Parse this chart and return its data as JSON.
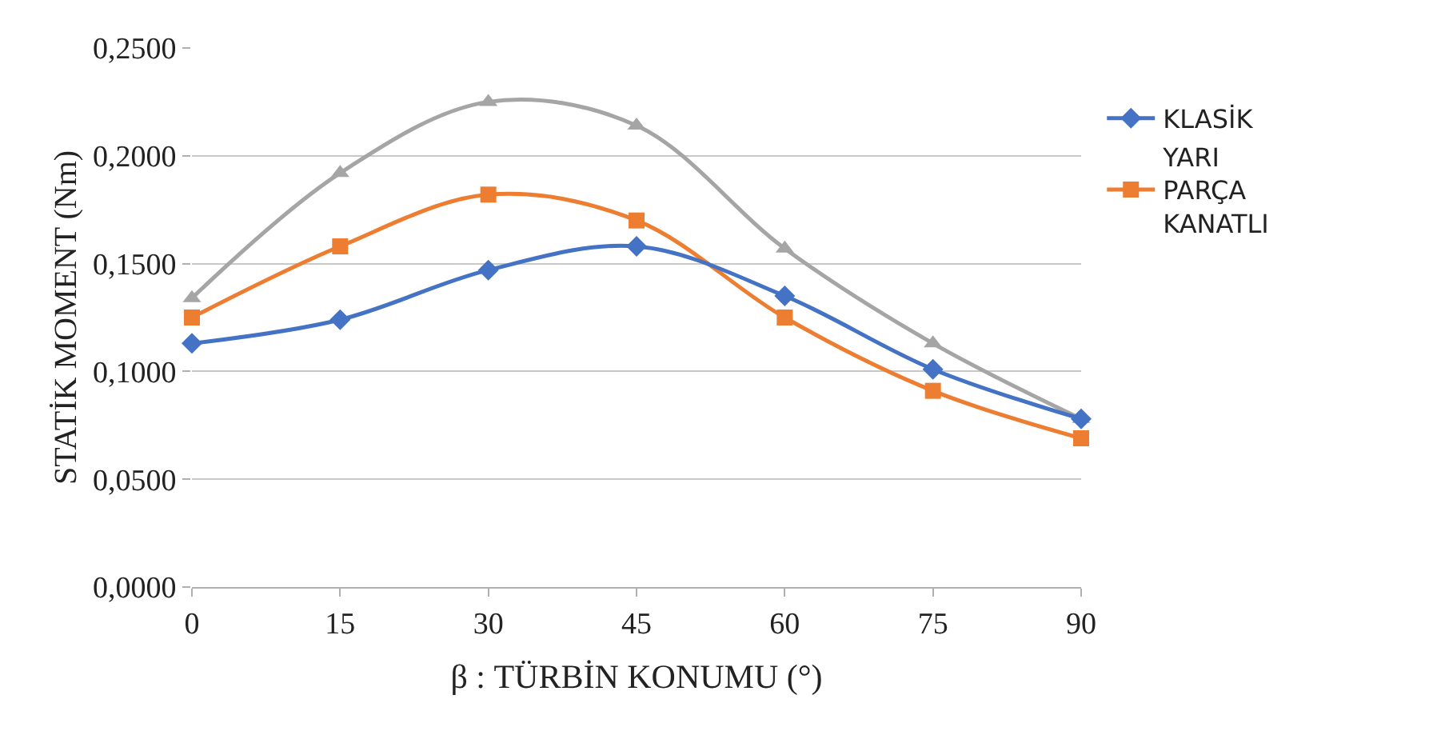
{
  "chart_data": {
    "type": "line",
    "xlabel": "β : TÜRBİN KONUMU (°)",
    "ylabel": "STATİK MOMENT (Nm)",
    "x": [
      0,
      15,
      30,
      45,
      60,
      75,
      90
    ],
    "series": [
      {
        "name": "KLASİK",
        "color": "#4472c4",
        "marker": "diamond",
        "values": [
          0.113,
          0.124,
          0.147,
          0.158,
          0.135,
          0.101,
          0.078
        ]
      },
      {
        "name": "YARI PARÇA KANATLI",
        "color": "#ed7d31",
        "marker": "square",
        "values": [
          0.125,
          0.158,
          0.182,
          0.17,
          0.125,
          0.091,
          0.069
        ]
      },
      {
        "color": "#a5a5a5",
        "marker": "triangle",
        "values": [
          0.134,
          0.192,
          0.225,
          0.214,
          0.157,
          0.113,
          0.078
        ]
      }
    ],
    "xlim": [
      0,
      90
    ],
    "xticks": [
      0,
      15,
      30,
      45,
      60,
      75,
      90
    ],
    "ylim": [
      0,
      0.25
    ],
    "yticks": [
      {
        "value": 0,
        "label": "0,0000"
      },
      {
        "value": 0.05,
        "label": "0,0500"
      },
      {
        "value": 0.1,
        "label": "0,1000"
      },
      {
        "value": 0.15,
        "label": "0,1500"
      },
      {
        "value": 0.2,
        "label": "0,2000"
      },
      {
        "value": 0.25,
        "label": "0,2500"
      }
    ],
    "grid": "y",
    "legend": "right"
  }
}
